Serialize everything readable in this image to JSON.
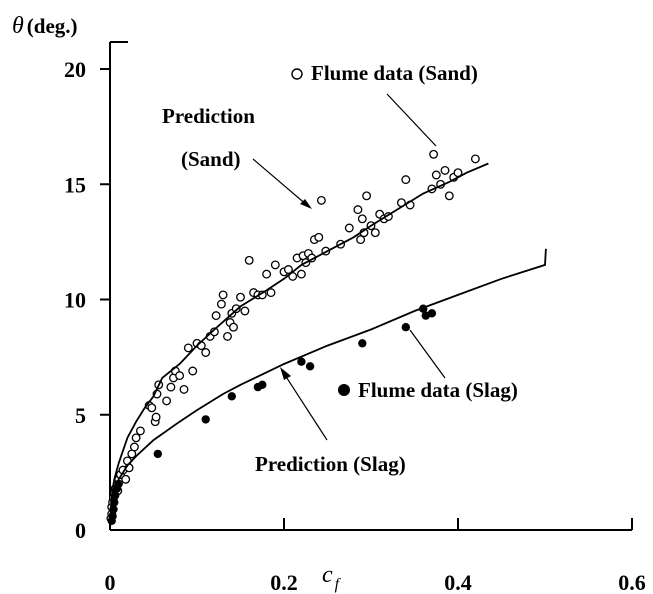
{
  "chart_data": {
    "type": "scatter",
    "ylabel_symbol": "θ",
    "ylabel_unit": "(deg.)",
    "xlabel_main": "c",
    "xlabel_sub": "f",
    "xlim": [
      0,
      0.6
    ],
    "ylim": [
      0,
      22
    ],
    "x_ticks": [
      0,
      0.2,
      0.4,
      0.6
    ],
    "x_tick_labels": [
      "0",
      "0.2",
      "0.4",
      "0.6"
    ],
    "y_ticks": [
      0,
      5,
      10,
      15,
      20
    ],
    "y_tick_labels": [
      "0",
      "5",
      "10",
      "15",
      "20"
    ],
    "grid": false,
    "series": [
      {
        "name": "Flume data (Sand)",
        "marker": "open-circle",
        "points": [
          [
            0.001,
            0.5
          ],
          [
            0.002,
            0.7
          ],
          [
            0.002,
            1.0
          ],
          [
            0.003,
            1.2
          ],
          [
            0.004,
            1.4
          ],
          [
            0.005,
            1.6
          ],
          [
            0.006,
            1.8
          ],
          [
            0.008,
            2.0
          ],
          [
            0.009,
            1.7
          ],
          [
            0.01,
            2.2
          ],
          [
            0.012,
            2.4
          ],
          [
            0.015,
            2.6
          ],
          [
            0.018,
            2.2
          ],
          [
            0.02,
            3.0
          ],
          [
            0.022,
            2.7
          ],
          [
            0.025,
            3.3
          ],
          [
            0.028,
            3.6
          ],
          [
            0.03,
            4.0
          ],
          [
            0.035,
            4.3
          ],
          [
            0.045,
            5.4
          ],
          [
            0.048,
            5.3
          ],
          [
            0.052,
            4.7
          ],
          [
            0.053,
            4.9
          ],
          [
            0.054,
            5.9
          ],
          [
            0.056,
            6.3
          ],
          [
            0.065,
            5.6
          ],
          [
            0.07,
            6.2
          ],
          [
            0.073,
            6.6
          ],
          [
            0.075,
            6.9
          ],
          [
            0.08,
            6.7
          ],
          [
            0.085,
            6.1
          ],
          [
            0.09,
            7.9
          ],
          [
            0.095,
            6.9
          ],
          [
            0.1,
            8.1
          ],
          [
            0.105,
            8.0
          ],
          [
            0.11,
            7.7
          ],
          [
            0.115,
            8.4
          ],
          [
            0.12,
            8.6
          ],
          [
            0.122,
            9.3
          ],
          [
            0.128,
            9.8
          ],
          [
            0.13,
            10.2
          ],
          [
            0.135,
            8.4
          ],
          [
            0.138,
            9.0
          ],
          [
            0.14,
            9.4
          ],
          [
            0.142,
            8.8
          ],
          [
            0.145,
            9.6
          ],
          [
            0.15,
            10.1
          ],
          [
            0.155,
            9.5
          ],
          [
            0.16,
            11.7
          ],
          [
            0.165,
            10.3
          ],
          [
            0.17,
            10.2
          ],
          [
            0.175,
            10.2
          ],
          [
            0.18,
            11.1
          ],
          [
            0.185,
            10.3
          ],
          [
            0.19,
            11.5
          ],
          [
            0.2,
            11.2
          ],
          [
            0.205,
            11.3
          ],
          [
            0.21,
            11.0
          ],
          [
            0.215,
            11.8
          ],
          [
            0.22,
            11.1
          ],
          [
            0.222,
            11.9
          ],
          [
            0.225,
            11.6
          ],
          [
            0.228,
            12.0
          ],
          [
            0.232,
            11.8
          ],
          [
            0.235,
            12.6
          ],
          [
            0.24,
            12.7
          ],
          [
            0.243,
            14.3
          ],
          [
            0.248,
            12.1
          ],
          [
            0.265,
            12.4
          ],
          [
            0.275,
            13.1
          ],
          [
            0.285,
            13.9
          ],
          [
            0.288,
            12.6
          ],
          [
            0.29,
            13.5
          ],
          [
            0.292,
            12.9
          ],
          [
            0.295,
            14.5
          ],
          [
            0.3,
            13.2
          ],
          [
            0.305,
            12.9
          ],
          [
            0.31,
            13.7
          ],
          [
            0.315,
            13.5
          ],
          [
            0.32,
            13.6
          ],
          [
            0.335,
            14.2
          ],
          [
            0.34,
            15.2
          ],
          [
            0.345,
            14.1
          ],
          [
            0.37,
            14.8
          ],
          [
            0.372,
            16.3
          ],
          [
            0.375,
            15.4
          ],
          [
            0.38,
            15.0
          ],
          [
            0.385,
            15.6
          ],
          [
            0.39,
            14.5
          ],
          [
            0.395,
            15.3
          ],
          [
            0.4,
            15.5
          ],
          [
            0.42,
            16.1
          ]
        ]
      },
      {
        "name": "Flume data (Slag)",
        "marker": "filled-circle",
        "points": [
          [
            0.002,
            0.4
          ],
          [
            0.003,
            0.6
          ],
          [
            0.004,
            0.9
          ],
          [
            0.005,
            1.2
          ],
          [
            0.006,
            1.5
          ],
          [
            0.008,
            1.8
          ],
          [
            0.01,
            2.0
          ],
          [
            0.055,
            3.3
          ],
          [
            0.11,
            4.8
          ],
          [
            0.14,
            5.8
          ],
          [
            0.17,
            6.2
          ],
          [
            0.175,
            6.3
          ],
          [
            0.22,
            7.3
          ],
          [
            0.23,
            7.1
          ],
          [
            0.29,
            8.1
          ],
          [
            0.34,
            8.8
          ],
          [
            0.36,
            9.6
          ],
          [
            0.363,
            9.3
          ],
          [
            0.37,
            9.4
          ]
        ]
      },
      {
        "name": "Prediction (Sand)",
        "marker": "line",
        "points": [
          [
            0,
            0.0
          ],
          [
            0.0005,
            0.6
          ],
          [
            0.002,
            1.4
          ],
          [
            0.005,
            2.2
          ],
          [
            0.01,
            2.9
          ],
          [
            0.02,
            4.0
          ],
          [
            0.03,
            4.7
          ],
          [
            0.04,
            5.3
          ],
          [
            0.05,
            5.8
          ],
          [
            0.06,
            6.6
          ],
          [
            0.08,
            7.2
          ],
          [
            0.1,
            8.0
          ],
          [
            0.12,
            8.7
          ],
          [
            0.15,
            9.7
          ],
          [
            0.18,
            10.4
          ],
          [
            0.2,
            10.9
          ],
          [
            0.22,
            11.5
          ],
          [
            0.25,
            12.1
          ],
          [
            0.28,
            12.7
          ],
          [
            0.3,
            13.2
          ],
          [
            0.33,
            13.9
          ],
          [
            0.36,
            14.6
          ],
          [
            0.39,
            15.1
          ],
          [
            0.41,
            15.5
          ],
          [
            0.435,
            15.9
          ]
        ]
      },
      {
        "name": "Prediction (Slag)",
        "marker": "line",
        "points": [
          [
            0,
            0.0
          ],
          [
            0.0005,
            0.4
          ],
          [
            0.002,
            1.0
          ],
          [
            0.005,
            1.7
          ],
          [
            0.01,
            2.2
          ],
          [
            0.02,
            2.8
          ],
          [
            0.03,
            3.2
          ],
          [
            0.05,
            3.9
          ],
          [
            0.08,
            4.7
          ],
          [
            0.1,
            5.2
          ],
          [
            0.13,
            5.9
          ],
          [
            0.15,
            6.3
          ],
          [
            0.2,
            7.2
          ],
          [
            0.25,
            8.0
          ],
          [
            0.3,
            8.7
          ],
          [
            0.35,
            9.5
          ],
          [
            0.4,
            10.2
          ],
          [
            0.45,
            10.9
          ],
          [
            0.5,
            11.5
          ],
          [
            0.501,
            12.2
          ]
        ]
      }
    ],
    "annotations": [
      {
        "text": "Flume data (Sand)",
        "marker": "open-circle"
      },
      {
        "text": "Prediction",
        "text2": "(Sand)"
      },
      {
        "text": "Flume data (Slag)",
        "marker": "filled-circle"
      },
      {
        "text": "Prediction (Slag)"
      }
    ]
  }
}
